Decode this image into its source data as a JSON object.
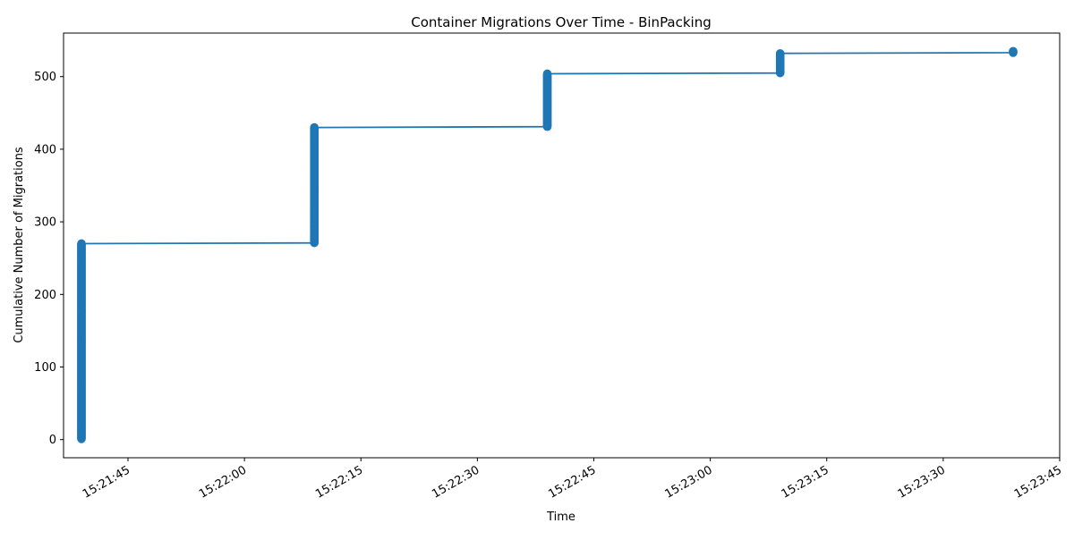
{
  "chart_data": {
    "type": "line",
    "title": "Container Migrations Over Time - BinPacking",
    "xlabel": "Time",
    "ylabel": "Cumulative Number of Migrations",
    "x_ticks": [
      "15:21:45",
      "15:22:00",
      "15:22:15",
      "15:22:30",
      "15:22:45",
      "15:23:00",
      "15:23:15",
      "15:23:30",
      "15:23:45"
    ],
    "y_ticks": [
      0,
      100,
      200,
      300,
      400,
      500
    ],
    "xlim": [
      "15:21:36.7",
      "15:23:45.0"
    ],
    "ylim": [
      -25,
      560
    ],
    "grid": false,
    "legend": "none",
    "series": [
      {
        "color": "#1f77b4",
        "marker": "circle",
        "bursts": [
          {
            "time": "15:21:39.0",
            "from": 1,
            "to": 270
          },
          {
            "time": "15:22:09.0",
            "from": 271,
            "to": 430
          },
          {
            "time": "15:22:39.0",
            "from": 431,
            "to": 504
          },
          {
            "time": "15:23:09.0",
            "from": 505,
            "to": 532
          },
          {
            "time": "15:23:39.0",
            "from": 533,
            "to": 535
          }
        ]
      }
    ]
  }
}
